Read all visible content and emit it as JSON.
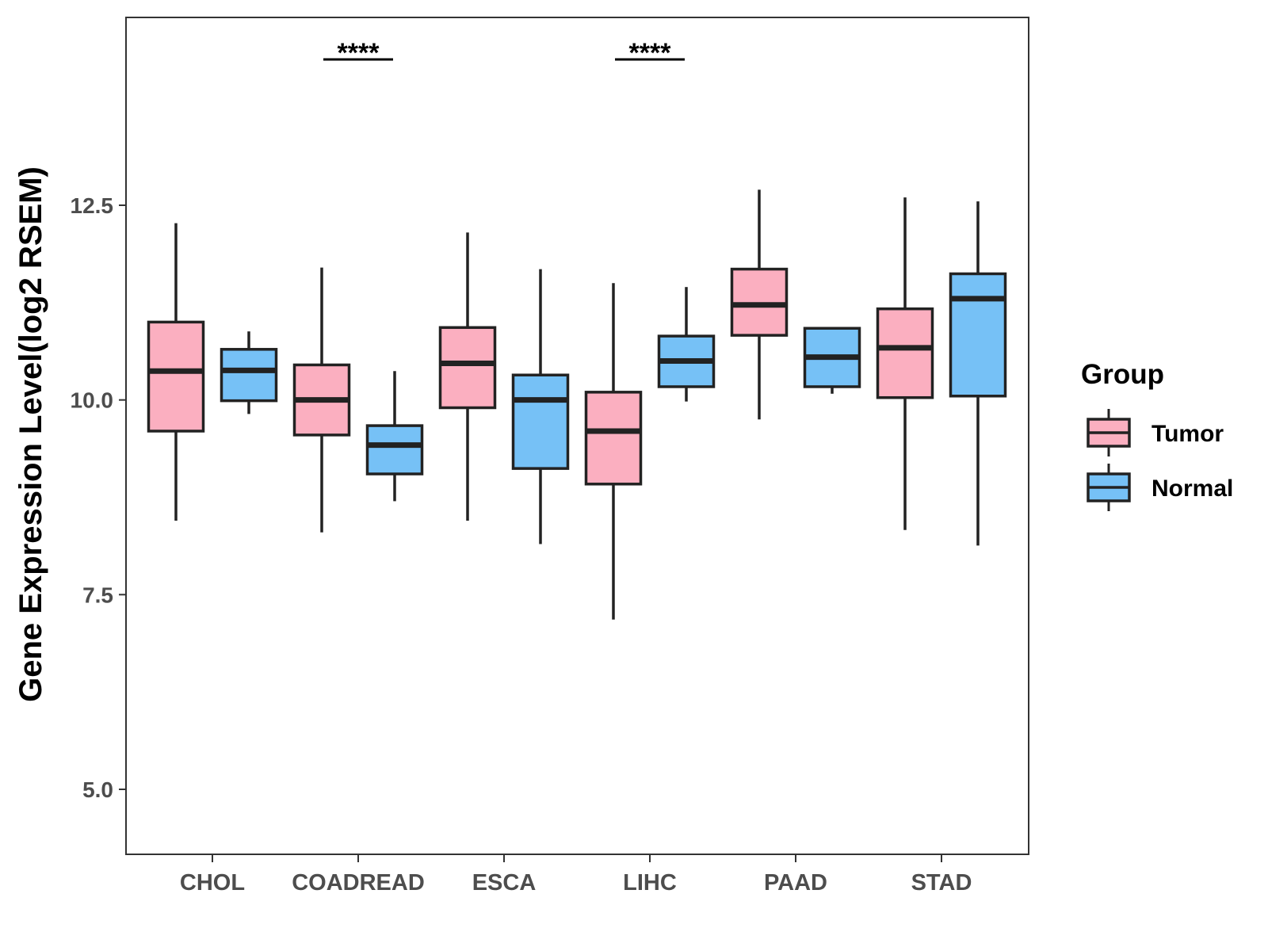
{
  "chart_data": {
    "type": "boxplot",
    "title": "",
    "xlabel": "",
    "ylabel": "Gene Expression Level(log2 RSEM)",
    "ylim": [
      4.2,
      15.0
    ],
    "yticks": [
      5.0,
      7.5,
      10.0,
      12.5
    ],
    "ytick_labels": [
      "5.0",
      "7.5",
      "10.0",
      "12.5"
    ],
    "grid": false,
    "legend": {
      "title": "Group",
      "position": "right"
    },
    "categories": [
      "CHOL",
      "COADREAD",
      "ESCA",
      "LIHC",
      "PAAD",
      "STAD"
    ],
    "series": [
      {
        "name": "Tumor",
        "color": "#FBAFC0",
        "boxes": [
          {
            "whisker_low": 8.45,
            "q1": 9.6,
            "median": 10.37,
            "q3": 11.0,
            "whisker_high": 12.27
          },
          {
            "whisker_low": 8.3,
            "q1": 9.55,
            "median": 10.0,
            "q3": 10.45,
            "whisker_high": 11.7
          },
          {
            "whisker_low": 8.45,
            "q1": 9.9,
            "median": 10.47,
            "q3": 10.93,
            "whisker_high": 12.15
          },
          {
            "whisker_low": 7.18,
            "q1": 8.92,
            "median": 9.6,
            "q3": 10.1,
            "whisker_high": 11.5
          },
          {
            "whisker_low": 9.75,
            "q1": 10.83,
            "median": 11.22,
            "q3": 11.68,
            "whisker_high": 12.7
          },
          {
            "whisker_low": 8.33,
            "q1": 10.03,
            "median": 10.67,
            "q3": 11.17,
            "whisker_high": 12.6
          }
        ]
      },
      {
        "name": "Normal",
        "color": "#76C1F6",
        "boxes": [
          {
            "whisker_low": 9.82,
            "q1": 9.99,
            "median": 10.38,
            "q3": 10.65,
            "whisker_high": 10.88
          },
          {
            "whisker_low": 8.7,
            "q1": 9.05,
            "median": 9.42,
            "q3": 9.67,
            "whisker_high": 10.37
          },
          {
            "whisker_low": 8.15,
            "q1": 9.12,
            "median": 10.0,
            "q3": 10.32,
            "whisker_high": 11.68
          },
          {
            "whisker_low": 9.98,
            "q1": 10.17,
            "median": 10.5,
            "q3": 10.82,
            "whisker_high": 11.45
          },
          {
            "whisker_low": 10.08,
            "q1": 10.17,
            "median": 10.55,
            "q3": 10.92,
            "whisker_high": 10.92
          },
          {
            "whisker_low": 8.13,
            "q1": 10.05,
            "median": 11.3,
            "q3": 11.62,
            "whisker_high": 12.55
          }
        ]
      }
    ],
    "annotations": [
      {
        "category": "COADREAD",
        "text": "****"
      },
      {
        "category": "LIHC",
        "text": "****"
      }
    ]
  }
}
